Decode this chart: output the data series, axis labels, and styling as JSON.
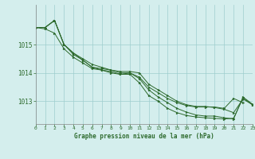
{
  "xlabel_label": "Graphe pression niveau de la mer (hPa)",
  "hours": [
    0,
    1,
    2,
    3,
    4,
    5,
    6,
    7,
    8,
    9,
    10,
    11,
    12,
    13,
    14,
    15,
    16,
    17,
    18,
    19,
    20,
    21,
    22,
    23
  ],
  "series": [
    [
      1015.6,
      1015.6,
      1015.85,
      1015.0,
      1014.65,
      1014.45,
      1014.2,
      1014.15,
      1014.1,
      1014.0,
      1014.0,
      1013.85,
      1013.5,
      1013.3,
      1013.1,
      1012.95,
      1012.85,
      1012.8,
      1012.8,
      1012.8,
      1012.75,
      1013.1,
      1012.95,
      null
    ],
    [
      1015.6,
      1015.6,
      1015.85,
      1015.0,
      1014.7,
      1014.5,
      1014.3,
      1014.2,
      1014.1,
      1014.05,
      1014.05,
      1014.0,
      1013.6,
      1013.4,
      1013.2,
      1013.0,
      1012.88,
      1012.82,
      1012.82,
      1012.78,
      1012.72,
      1012.6,
      1013.08,
      1012.88
    ],
    [
      1015.6,
      1015.55,
      1015.4,
      1014.85,
      1014.55,
      1014.35,
      1014.15,
      1014.1,
      1014.05,
      1013.95,
      1013.95,
      1013.65,
      1013.2,
      1013.0,
      1012.75,
      1012.6,
      1012.5,
      1012.45,
      1012.42,
      1012.4,
      1012.38,
      1012.4,
      1013.12,
      1012.88
    ],
    [
      1015.6,
      1015.6,
      1015.85,
      1015.0,
      1014.7,
      1014.45,
      1014.2,
      1014.1,
      1014.0,
      1013.95,
      1014.0,
      1013.8,
      1013.4,
      1013.15,
      1012.95,
      1012.75,
      1012.62,
      1012.52,
      1012.48,
      1012.48,
      1012.42,
      1012.38,
      1013.15,
      1012.9
    ]
  ],
  "line_color": "#2d6a2d",
  "marker_color": "#2d6a2d",
  "bg_color": "#d4eeed",
  "grid_color": "#9ecece",
  "text_color": "#2d6a2d",
  "ylim": [
    1012.2,
    1016.4
  ],
  "yticks": [
    1013,
    1014,
    1015
  ],
  "xlim": [
    0,
    23
  ],
  "xticks": [
    0,
    1,
    2,
    3,
    4,
    5,
    6,
    7,
    8,
    9,
    10,
    11,
    12,
    13,
    14,
    15,
    16,
    17,
    18,
    19,
    20,
    21,
    22,
    23
  ]
}
